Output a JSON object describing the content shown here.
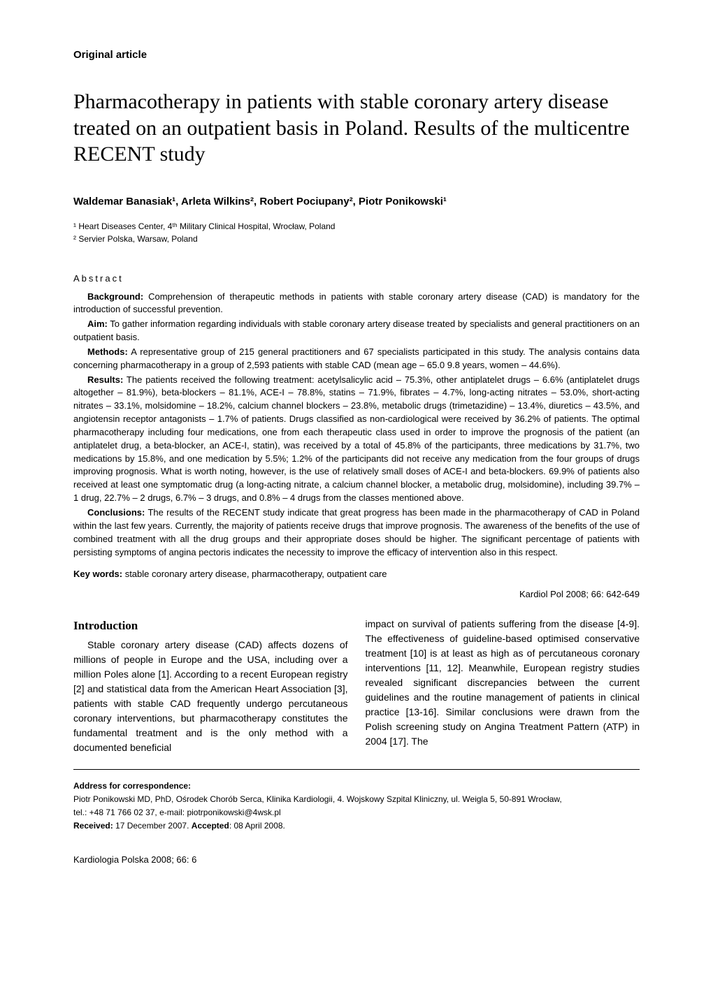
{
  "section_label": "Original article",
  "title": "Pharmacotherapy in patients with stable coronary artery disease treated on an outpatient basis in Poland. Results of the multicentre RECENT study",
  "authors": "Waldemar Banasiak¹, Arleta Wilkins², Robert Pociupany², Piotr Ponikowski¹",
  "affiliations": {
    "a1": "¹ Heart Diseases Center, 4ᵗʰ Military Clinical Hospital, Wrocław, Poland",
    "a2": "² Servier Polska, Warsaw, Poland"
  },
  "abstract_heading": "Abstract",
  "abstract": {
    "background": {
      "label": "Background:",
      "text": " Comprehension of therapeutic methods in patients with stable coronary artery disease (CAD) is mandatory for the introduction of successful prevention."
    },
    "aim": {
      "label": "Aim:",
      "text": " To gather information regarding individuals with stable coronary artery disease treated by specialists and general practitioners on an outpatient basis."
    },
    "methods": {
      "label": "Methods:",
      "text": " A representative group of 215 general practitioners and 67 specialists participated in this study. The analysis contains data concerning pharmacotherapy in a group of 2,593 patients with stable CAD (mean age – 65.0  9.8 years, women – 44.6%)."
    },
    "results": {
      "label": "Results:",
      "text": " The patients received the following treatment: acetylsalicylic acid – 75.3%, other antiplatelet drugs – 6.6% (antiplatelet drugs altogether – 81.9%), beta-blockers – 81.1%, ACE-I – 78.8%, statins – 71.9%, fibrates – 4.7%, long-acting nitrates – 53.0%, short-acting nitrates – 33.1%, molsidomine – 18.2%, calcium channel blockers – 23.8%, metabolic drugs (trimetazidine) – 13.4%, diuretics – 43.5%, and angiotensin receptor antagonists – 1.7% of patients. Drugs classified as non-cardiological were received by 36.2% of patients. The optimal pharmacotherapy including four medications, one from each therapeutic class used in order to improve the prognosis of the patient (an antiplatelet drug, a beta-blocker, an ACE-I, statin), was received by a total of 45.8% of the participants, three medications by 31.7%, two medications by 15.8%, and one medication by 5.5%; 1.2% of the participants did not receive any medication from the four groups of drugs improving prognosis. What is worth noting, however, is the use of relatively small doses of ACE-I and beta-blockers. 69.9% of patients also received at least one symptomatic drug (a long-acting nitrate, a calcium channel blocker, a metabolic drug, molsidomine), including 39.7% – 1 drug, 22.7% – 2 drugs, 6.7% – 3 drugs, and 0.8% – 4 drugs from the classes mentioned above."
    },
    "conclusions": {
      "label": "Conclusions:",
      "text": " The results of the RECENT study indicate that great progress has been made in the pharmacotherapy of CAD in Poland within the last few years. Currently, the majority of patients receive drugs that improve prognosis. The awareness of the benefits of the use of combined treatment with all the drug groups and their appropriate doses should be higher. The significant percentage of patients with persisting symptoms of angina pectoris indicates the necessity to improve the efficacy of intervention also in this respect."
    }
  },
  "keywords": {
    "label": "Key words:",
    "text": " stable coronary artery disease, pharmacotherapy, outpatient care"
  },
  "citation": "Kardiol Pol 2008; 66:  642-649",
  "introduction": {
    "heading": "Introduction",
    "col1": "Stable coronary artery disease (CAD) affects dozens of millions of people in Europe and the USA, including over a million Poles alone [1]. According to a recent European registry [2] and statistical data from the American Heart Association [3], patients with stable CAD frequently undergo percutaneous coronary interventions, but pharmacotherapy constitutes the fundamental treatment and is the only method with a documented beneficial",
    "col2": "impact on survival of patients suffering from the disease [4-9]. The effectiveness of guideline-based optimised conservative treatment [10] is at least as high as of percutaneous coronary interventions [11, 12]. Meanwhile, European registry studies revealed significant discrepancies between the current guidelines and the routine management of patients in clinical practice [13-16]. Similar conclusions were drawn from the Polish screening study on Angina Treatment Pattern (ATP) in 2004 [17]. The"
  },
  "correspondence": {
    "label": "Address for correspondence:",
    "line1": "Piotr Ponikowski MD, PhD, Ośrodek Chorób Serca, Klinika Kardiologii, 4. Wojskowy Szpital Kliniczny, ul. Weigla 5, 50-891 Wrocław,",
    "line2": "tel.: +48 71  766 02 37, e-mail: piotrponikowski@4wsk.pl",
    "received_label": "Received:",
    "received_text": " 17 December 2007. ",
    "accepted_label": "Accepted",
    "accepted_text": ": 08 April 2008."
  },
  "journal_footer": "Kardiologia Polska 2008; 66: 6"
}
